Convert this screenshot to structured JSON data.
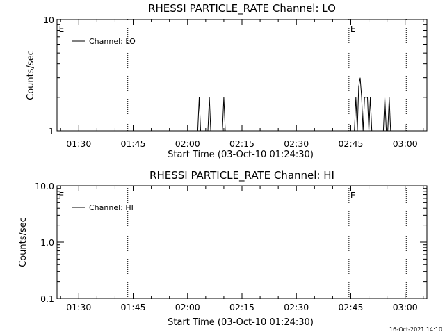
{
  "chart_data": [
    {
      "type": "line",
      "title": "RHESSI PARTICLE_RATE Channel: LO",
      "xlabel": "Start Time (03-Oct-10 01:24:30)",
      "ylabel": "Counts/sec",
      "yscale": "log",
      "ylim": [
        1,
        10
      ],
      "yticks": [
        1,
        10
      ],
      "ytick_labels": [
        "1",
        "10"
      ],
      "xlim_minutes": [
        84,
        186
      ],
      "xticks": [
        "01:30",
        "01:45",
        "02:00",
        "02:15",
        "02:30",
        "02:45",
        "03:00"
      ],
      "xtick_minutes": [
        90,
        105,
        120,
        135,
        150,
        165,
        180
      ],
      "vlines_minutes": [
        103.5,
        164.5,
        180.3
      ],
      "markers": [
        {
          "text": "E",
          "minute": 84.3
        },
        {
          "text": "E",
          "minute": 164.7
        }
      ],
      "legend": "top-left",
      "series": [
        {
          "name": "Channel: LO",
          "points": [
            [
              84.3,
              1
            ],
            [
              122.8,
              1
            ],
            [
              123.2,
              2
            ],
            [
              123.6,
              1
            ],
            [
              125.6,
              1
            ],
            [
              126.0,
              2
            ],
            [
              126.4,
              1
            ],
            [
              129.6,
              1
            ],
            [
              130.0,
              2
            ],
            [
              130.4,
              1
            ],
            [
              166.0,
              1
            ],
            [
              166.4,
              2
            ],
            [
              166.8,
              1
            ],
            [
              167.2,
              2.5
            ],
            [
              167.6,
              3
            ],
            [
              168.0,
              2
            ],
            [
              168.4,
              1
            ],
            [
              168.8,
              2
            ],
            [
              169.6,
              2
            ],
            [
              170.0,
              1
            ],
            [
              170.4,
              2
            ],
            [
              170.8,
              1
            ],
            [
              174.0,
              1
            ],
            [
              174.4,
              2
            ],
            [
              174.8,
              1
            ],
            [
              175.2,
              1
            ],
            [
              175.6,
              2
            ],
            [
              176.0,
              1
            ],
            [
              186,
              1
            ]
          ]
        }
      ]
    },
    {
      "type": "line",
      "title": "RHESSI PARTICLE_RATE Channel: HI",
      "xlabel": "Start Time (03-Oct-10 01:24:30)",
      "ylabel": "Counts/sec",
      "yscale": "log",
      "ylim": [
        0.1,
        10
      ],
      "yticks": [
        0.1,
        1,
        10
      ],
      "ytick_labels": [
        "0.1",
        "1.0",
        "10.0"
      ],
      "xlim_minutes": [
        84,
        186
      ],
      "xticks": [
        "01:30",
        "01:45",
        "02:00",
        "02:15",
        "02:30",
        "02:45",
        "03:00"
      ],
      "xtick_minutes": [
        90,
        105,
        120,
        135,
        150,
        165,
        180
      ],
      "vlines_minutes": [
        103.5,
        164.5,
        180.3
      ],
      "markers": [
        {
          "text": "E",
          "minute": 84.3
        },
        {
          "text": "E",
          "minute": 164.7
        }
      ],
      "legend": "top-left",
      "series": [
        {
          "name": "Channel: HI",
          "points": []
        }
      ]
    }
  ],
  "footer": {
    "timestamp": "16-Oct-2021 14:10"
  }
}
